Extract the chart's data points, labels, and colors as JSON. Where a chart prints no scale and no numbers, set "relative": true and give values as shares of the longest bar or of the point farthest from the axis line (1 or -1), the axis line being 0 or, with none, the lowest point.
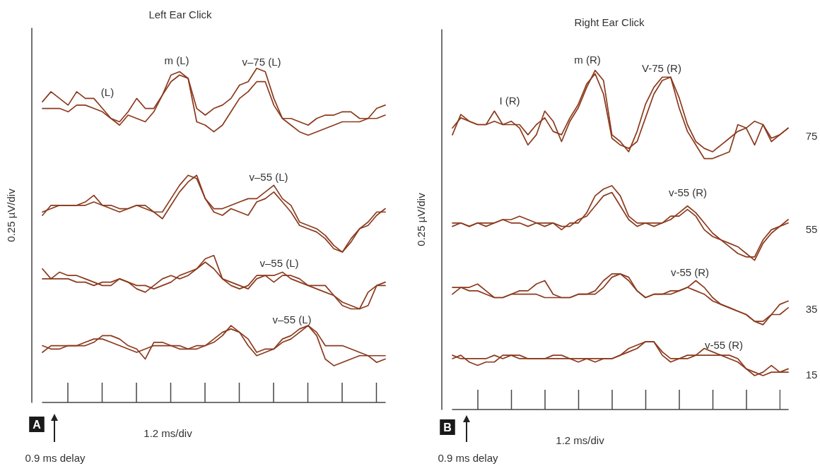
{
  "chart_data": [
    {
      "type": "line",
      "relative": true,
      "title": "Left Ear Click",
      "xlabel": "1.2 ms/div",
      "ylabel": "0.25 µV/div",
      "marker": "none",
      "categories": [
        null,
        null,
        null,
        null,
        null,
        null,
        null,
        null,
        null,
        null,
        null,
        null,
        null,
        null,
        null,
        null,
        null,
        null,
        null,
        null,
        null,
        null,
        null,
        null,
        null,
        null,
        null,
        null,
        null,
        null,
        null,
        null,
        null,
        null,
        null,
        null,
        null,
        null,
        null,
        null,
        null
      ],
      "series": [
        {
          "color": "#8b3a1e",
          "values": [
            0.9,
            0.93,
            0.91,
            0.89,
            0.93,
            0.91,
            0.91,
            0.88,
            0.85,
            0.84,
            0.87,
            0.91,
            0.88,
            0.88,
            0.92,
            0.98,
            0.99,
            0.97,
            0.88,
            0.86,
            0.88,
            0.89,
            0.91,
            0.95,
            0.96,
            1.0,
            0.99,
            0.91,
            0.85,
            0.85,
            0.84,
            0.83,
            0.85,
            0.86,
            0.86,
            0.87,
            0.87,
            0.85,
            0.85,
            0.88,
            0.89
          ]
        },
        {
          "color": "#8b3a1e",
          "values": [
            0.88,
            0.88,
            0.88,
            0.87,
            0.89,
            0.89,
            0.88,
            0.87,
            0.85,
            0.83,
            0.86,
            0.85,
            0.84,
            0.87,
            0.92,
            0.96,
            0.98,
            0.97,
            0.84,
            0.83,
            0.81,
            0.83,
            0.87,
            0.91,
            0.93,
            0.96,
            0.96,
            0.89,
            0.85,
            0.83,
            0.81,
            0.8,
            0.81,
            0.82,
            0.83,
            0.84,
            0.84,
            0.84,
            0.85,
            0.85,
            0.86
          ]
        },
        {
          "color": "#8b3a1e",
          "values": [
            0.56,
            0.59,
            0.59,
            0.59,
            0.59,
            0.6,
            0.62,
            0.59,
            0.59,
            0.58,
            0.58,
            0.59,
            0.59,
            0.57,
            0.57,
            0.61,
            0.65,
            0.68,
            0.67,
            0.61,
            0.58,
            0.58,
            0.59,
            0.6,
            0.61,
            0.61,
            0.63,
            0.65,
            0.61,
            0.59,
            0.54,
            0.53,
            0.52,
            0.5,
            0.47,
            0.45,
            0.49,
            0.52,
            0.53,
            0.56,
            0.58
          ]
        },
        {
          "color": "#8b3a1e",
          "values": [
            0.57,
            0.58,
            0.59,
            0.59,
            0.59,
            0.59,
            0.6,
            0.59,
            0.58,
            0.57,
            0.58,
            0.59,
            0.58,
            0.57,
            0.55,
            0.59,
            0.63,
            0.66,
            0.68,
            0.61,
            0.57,
            0.56,
            0.58,
            0.57,
            0.56,
            0.6,
            0.61,
            0.63,
            0.6,
            0.57,
            0.53,
            0.52,
            0.51,
            0.49,
            0.46,
            0.45,
            0.48,
            0.52,
            0.54,
            0.57,
            0.57
          ]
        },
        {
          "color": "#8b3a1e",
          "values": [
            0.4,
            0.37,
            0.39,
            0.38,
            0.38,
            0.37,
            0.36,
            0.35,
            0.35,
            0.37,
            0.36,
            0.34,
            0.33,
            0.35,
            0.37,
            0.38,
            0.37,
            0.38,
            0.4,
            0.43,
            0.44,
            0.37,
            0.35,
            0.34,
            0.35,
            0.38,
            0.38,
            0.38,
            0.39,
            0.37,
            0.36,
            0.35,
            0.35,
            0.35,
            0.32,
            0.29,
            0.28,
            0.28,
            0.33,
            0.35,
            0.36
          ]
        },
        {
          "color": "#8b3a1e",
          "values": [
            0.37,
            0.37,
            0.37,
            0.37,
            0.36,
            0.36,
            0.35,
            0.36,
            0.36,
            0.37,
            0.36,
            0.35,
            0.35,
            0.34,
            0.35,
            0.36,
            0.38,
            0.39,
            0.4,
            0.42,
            0.4,
            0.37,
            0.36,
            0.35,
            0.34,
            0.37,
            0.38,
            0.36,
            0.38,
            0.38,
            0.37,
            0.35,
            0.34,
            0.33,
            0.32,
            0.3,
            0.29,
            0.28,
            0.29,
            0.35,
            0.35
          ]
        },
        {
          "color": "#8b3a1e",
          "values": [
            0.15,
            0.17,
            0.17,
            0.17,
            0.17,
            0.17,
            0.18,
            0.2,
            0.2,
            0.19,
            0.17,
            0.16,
            0.13,
            0.18,
            0.18,
            0.17,
            0.16,
            0.16,
            0.17,
            0.17,
            0.18,
            0.2,
            0.23,
            0.21,
            0.17,
            0.14,
            0.15,
            0.16,
            0.18,
            0.19,
            0.21,
            0.23,
            0.2,
            0.13,
            0.11,
            0.12,
            0.13,
            0.14,
            0.14,
            0.12,
            0.13
          ]
        },
        {
          "color": "#8b3a1e",
          "values": [
            0.17,
            0.16,
            0.16,
            0.17,
            0.17,
            0.18,
            0.19,
            0.19,
            0.18,
            0.17,
            0.16,
            0.15,
            0.16,
            0.17,
            0.17,
            0.17,
            0.17,
            0.16,
            0.16,
            0.17,
            0.19,
            0.21,
            0.22,
            0.21,
            0.19,
            0.15,
            0.16,
            0.16,
            0.19,
            0.2,
            0.22,
            0.23,
            0.21,
            0.17,
            0.17,
            0.17,
            0.16,
            0.15,
            0.14,
            0.14,
            0.14
          ]
        }
      ],
      "annotations": [
        "(L)",
        "m (L)",
        "v–75 (L)",
        "v–55 (L)",
        "v–55 (L)",
        "v–55 (L)",
        "0.9 ms delay",
        "A"
      ]
    },
    {
      "type": "line",
      "relative": true,
      "title": "Right Ear Click",
      "xlabel": "1.2 ms/div",
      "ylabel": "0.25 µV/div",
      "marker": "none",
      "categories": [
        null,
        null,
        null,
        null,
        null,
        null,
        null,
        null,
        null,
        null,
        null,
        null,
        null,
        null,
        null,
        null,
        null,
        null,
        null,
        null,
        null,
        null,
        null,
        null,
        null,
        null,
        null,
        null,
        null,
        null,
        null,
        null,
        null,
        null,
        null,
        null,
        null,
        null,
        null,
        null,
        null
      ],
      "series": [
        {
          "color": "#8b3a1e",
          "values": [
            0.81,
            0.87,
            0.85,
            0.84,
            0.84,
            0.88,
            0.84,
            0.85,
            0.83,
            0.78,
            0.81,
            0.88,
            0.85,
            0.79,
            0.85,
            0.89,
            0.95,
            1.0,
            0.97,
            0.81,
            0.79,
            0.76,
            0.82,
            0.9,
            0.95,
            0.98,
            0.98,
            0.89,
            0.82,
            0.78,
            0.74,
            0.74,
            0.75,
            0.76,
            0.84,
            0.83,
            0.78,
            0.84,
            0.79,
            0.81,
            0.83
          ]
        },
        {
          "color": "#8b3a1e",
          "values": [
            0.83,
            0.86,
            0.85,
            0.84,
            0.84,
            0.85,
            0.84,
            0.84,
            0.84,
            0.81,
            0.84,
            0.86,
            0.82,
            0.81,
            0.86,
            0.9,
            0.96,
            0.99,
            0.93,
            0.8,
            0.78,
            0.77,
            0.79,
            0.86,
            0.93,
            0.97,
            0.98,
            0.92,
            0.84,
            0.79,
            0.77,
            0.76,
            0.78,
            0.8,
            0.82,
            0.83,
            0.85,
            0.84,
            0.8,
            0.81,
            0.83
          ]
        },
        {
          "color": "#8b3a1e",
          "values": [
            0.55,
            0.55,
            0.54,
            0.55,
            0.55,
            0.55,
            0.56,
            0.56,
            0.57,
            0.56,
            0.55,
            0.55,
            0.55,
            0.53,
            0.55,
            0.55,
            0.58,
            0.63,
            0.65,
            0.66,
            0.63,
            0.57,
            0.55,
            0.55,
            0.55,
            0.55,
            0.56,
            0.58,
            0.6,
            0.58,
            0.55,
            0.52,
            0.5,
            0.49,
            0.48,
            0.46,
            0.44,
            0.49,
            0.52,
            0.54,
            0.56
          ]
        },
        {
          "color": "#8b3a1e",
          "values": [
            0.54,
            0.55,
            0.54,
            0.55,
            0.54,
            0.55,
            0.56,
            0.55,
            0.55,
            0.54,
            0.55,
            0.54,
            0.55,
            0.54,
            0.54,
            0.56,
            0.57,
            0.6,
            0.63,
            0.64,
            0.6,
            0.56,
            0.54,
            0.55,
            0.54,
            0.55,
            0.57,
            0.57,
            0.59,
            0.57,
            0.53,
            0.51,
            0.5,
            0.48,
            0.46,
            0.45,
            0.45,
            0.5,
            0.53,
            0.54,
            0.55
          ]
        },
        {
          "color": "#8b3a1e",
          "values": [
            0.34,
            0.36,
            0.36,
            0.37,
            0.35,
            0.33,
            0.33,
            0.34,
            0.35,
            0.35,
            0.37,
            0.38,
            0.34,
            0.33,
            0.33,
            0.34,
            0.34,
            0.35,
            0.38,
            0.4,
            0.4,
            0.39,
            0.35,
            0.33,
            0.34,
            0.34,
            0.34,
            0.35,
            0.36,
            0.38,
            0.36,
            0.33,
            0.31,
            0.3,
            0.29,
            0.28,
            0.26,
            0.25,
            0.28,
            0.31,
            0.32
          ]
        },
        {
          "color": "#8b3a1e",
          "values": [
            0.36,
            0.36,
            0.35,
            0.35,
            0.34,
            0.33,
            0.33,
            0.34,
            0.34,
            0.34,
            0.34,
            0.33,
            0.33,
            0.33,
            0.33,
            0.34,
            0.34,
            0.34,
            0.36,
            0.39,
            0.4,
            0.38,
            0.35,
            0.33,
            0.34,
            0.34,
            0.35,
            0.35,
            0.36,
            0.35,
            0.34,
            0.32,
            0.31,
            0.3,
            0.29,
            0.28,
            0.26,
            0.26,
            0.28,
            0.28,
            0.3
          ]
        },
        {
          "color": "#8b3a1e",
          "values": [
            0.15,
            0.16,
            0.14,
            0.13,
            0.14,
            0.14,
            0.16,
            0.16,
            0.16,
            0.15,
            0.15,
            0.15,
            0.16,
            0.16,
            0.15,
            0.14,
            0.15,
            0.14,
            0.15,
            0.15,
            0.16,
            0.18,
            0.19,
            0.2,
            0.2,
            0.16,
            0.14,
            0.15,
            0.16,
            0.16,
            0.18,
            0.17,
            0.16,
            0.16,
            0.15,
            0.12,
            0.1,
            0.11,
            0.13,
            0.11,
            0.12
          ]
        },
        {
          "color": "#8b3a1e",
          "values": [
            0.16,
            0.15,
            0.15,
            0.15,
            0.15,
            0.16,
            0.15,
            0.16,
            0.15,
            0.15,
            0.15,
            0.15,
            0.15,
            0.15,
            0.15,
            0.15,
            0.15,
            0.15,
            0.15,
            0.15,
            0.16,
            0.17,
            0.18,
            0.2,
            0.2,
            0.17,
            0.15,
            0.15,
            0.15,
            0.16,
            0.16,
            0.16,
            0.16,
            0.15,
            0.14,
            0.12,
            0.11,
            0.1,
            0.11,
            0.11,
            0.11
          ]
        }
      ],
      "annotations": [
        "I (R)",
        "m (R)",
        "V-75 (R)",
        "v-55 (R)",
        "v-55 (R)",
        "v-55 (R)",
        "75",
        "55",
        "35",
        "15",
        "0.9 ms delay",
        "B"
      ]
    }
  ]
}
